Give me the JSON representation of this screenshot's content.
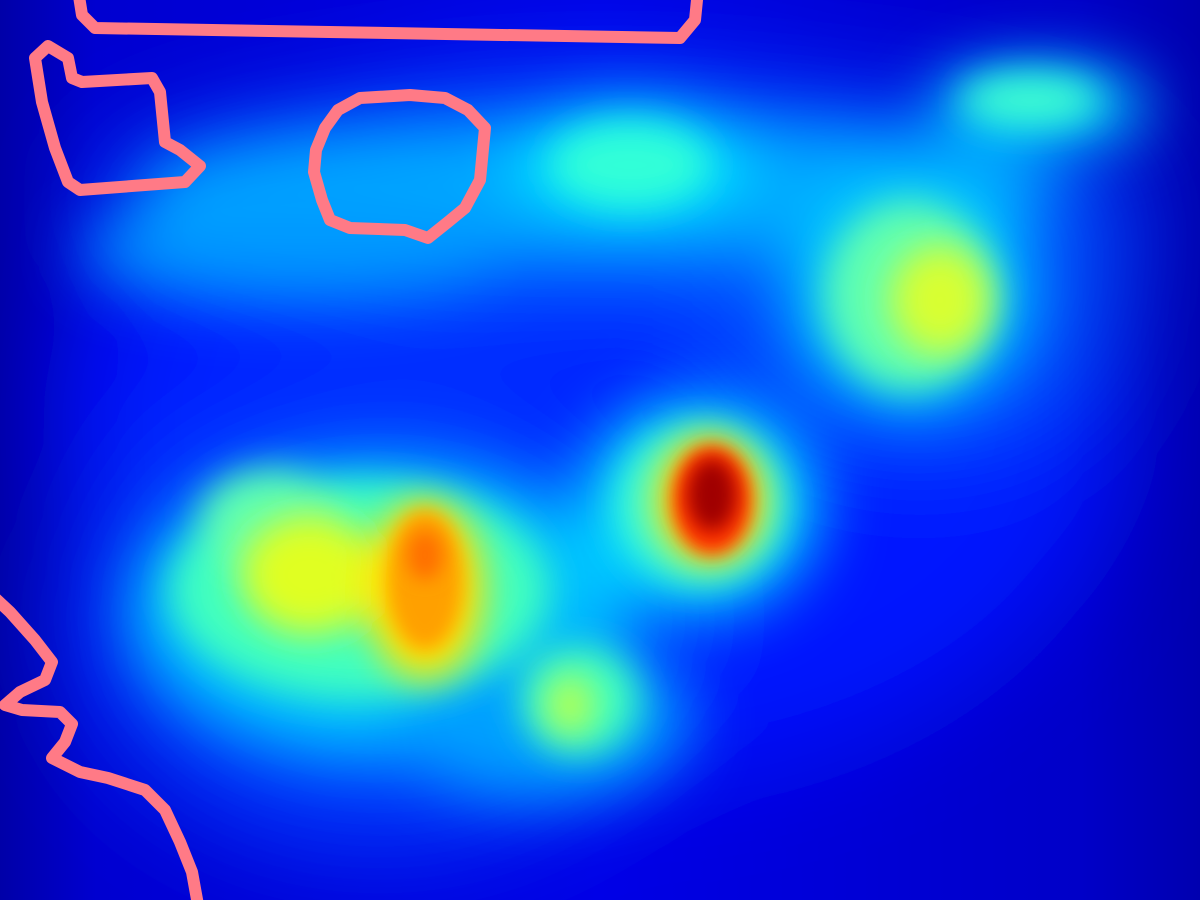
{
  "image": {
    "kind": "heatmap-overlay",
    "colormap": "jet",
    "colors": {
      "background": "#0000b4",
      "low": "#0010ff",
      "mid_low": "#00c8ff",
      "mid": "#30ffd0",
      "mid_high": "#d8ff20",
      "high": "#ffa000",
      "peak": "#a00000",
      "outline": "#ff7a86"
    }
  }
}
